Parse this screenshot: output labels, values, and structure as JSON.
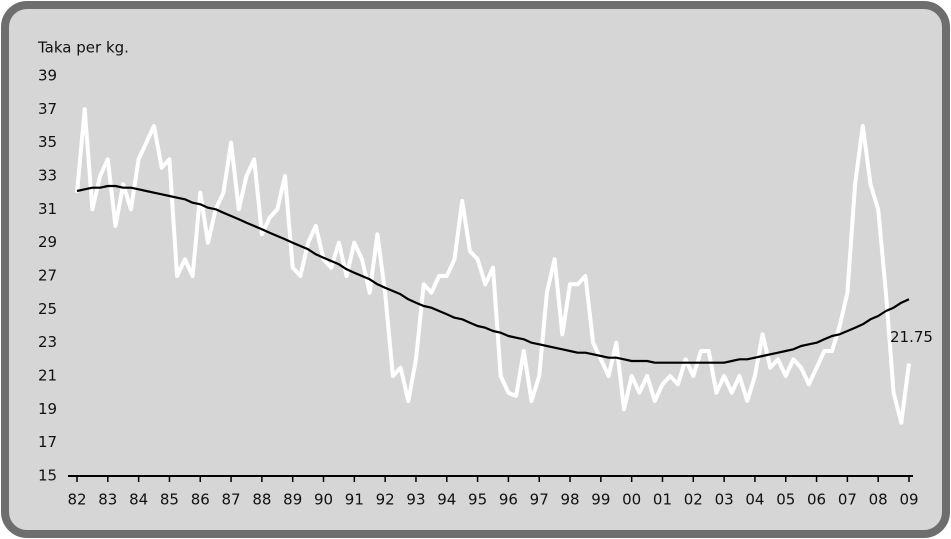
{
  "chart_data": {
    "type": "line",
    "ylabel": "Taka per kg.",
    "categories": [
      "82",
      null,
      null,
      null,
      "83",
      null,
      null,
      null,
      "84",
      null,
      null,
      null,
      "85",
      null,
      null,
      null,
      "86",
      null,
      null,
      null,
      "87",
      null,
      null,
      null,
      "88",
      null,
      null,
      null,
      "89",
      null,
      null,
      null,
      "90",
      null,
      null,
      null,
      "91",
      null,
      null,
      null,
      "92",
      null,
      null,
      null,
      "93",
      null,
      null,
      null,
      "94",
      null,
      null,
      null,
      "95",
      null,
      null,
      null,
      "96",
      null,
      null,
      null,
      "97",
      null,
      null,
      null,
      "98",
      null,
      null,
      null,
      "99",
      null,
      null,
      null,
      "00",
      null,
      null,
      null,
      "01",
      null,
      null,
      null,
      "02",
      null,
      null,
      null,
      "03",
      null,
      null,
      null,
      "04",
      null,
      null,
      null,
      "05",
      null,
      null,
      null,
      "06",
      null,
      null,
      null,
      "07",
      null,
      null,
      null,
      "08",
      null,
      null,
      null,
      "09"
    ],
    "series": [
      {
        "color": "#ffffff",
        "values": [
          32,
          37,
          31,
          33,
          34,
          30,
          32.5,
          31,
          34,
          35,
          36,
          33.5,
          34,
          27,
          28,
          27,
          32,
          29,
          31,
          32,
          35,
          31,
          33,
          34,
          29.5,
          30.5,
          31,
          33,
          27.5,
          27,
          29,
          30,
          28,
          27.5,
          29,
          27,
          29,
          28,
          26,
          29.5,
          26,
          21,
          21.5,
          19.5,
          22,
          26.5,
          26,
          27,
          27,
          28,
          31.5,
          28.5,
          28,
          26.5,
          27.5,
          21,
          20,
          19.8,
          22.5,
          19.5,
          21,
          26,
          28,
          23.5,
          26.5,
          26.5,
          27,
          23,
          22,
          21,
          23,
          19,
          21,
          20,
          21,
          19.5,
          20.5,
          21,
          20.5,
          22,
          21,
          22.5,
          22.5,
          20,
          21,
          20,
          21,
          19.5,
          21,
          23.5,
          21.5,
          22,
          21,
          22,
          21.5,
          20.5,
          21.5,
          22.5,
          22.5,
          24,
          26,
          32.5,
          36,
          32.5,
          31,
          26,
          20,
          18.2,
          21.75
        ]
      },
      {
        "color": "#000000",
        "values": [
          32.1,
          32.2,
          32.3,
          32.3,
          32.4,
          32.4,
          32.3,
          32.3,
          32.2,
          32.1,
          32.0,
          31.9,
          31.8,
          31.7,
          31.6,
          31.4,
          31.3,
          31.1,
          31.0,
          30.8,
          30.6,
          30.4,
          30.2,
          30.0,
          29.8,
          29.6,
          29.4,
          29.2,
          29.0,
          28.8,
          28.6,
          28.3,
          28.1,
          27.9,
          27.7,
          27.4,
          27.2,
          27.0,
          26.8,
          26.5,
          26.3,
          26.1,
          25.9,
          25.6,
          25.4,
          25.2,
          25.1,
          24.9,
          24.7,
          24.5,
          24.4,
          24.2,
          24.0,
          23.9,
          23.7,
          23.6,
          23.4,
          23.3,
          23.2,
          23.0,
          22.9,
          22.8,
          22.7,
          22.6,
          22.5,
          22.4,
          22.4,
          22.3,
          22.2,
          22.1,
          22.1,
          22.0,
          21.9,
          21.9,
          21.9,
          21.8,
          21.8,
          21.8,
          21.8,
          21.8,
          21.8,
          21.8,
          21.8,
          21.8,
          21.8,
          21.9,
          22.0,
          22.0,
          22.1,
          22.2,
          22.3,
          22.4,
          22.5,
          22.6,
          22.8,
          22.9,
          23.0,
          23.2,
          23.4,
          23.5,
          23.7,
          23.9,
          24.1,
          24.4,
          24.6,
          24.9,
          25.1,
          25.4,
          25.6
        ]
      }
    ],
    "ylim": [
      15,
      39
    ],
    "yticks": [
      15,
      17,
      19,
      21,
      23,
      25,
      27,
      29,
      31,
      33,
      35,
      37,
      39
    ]
  }
}
